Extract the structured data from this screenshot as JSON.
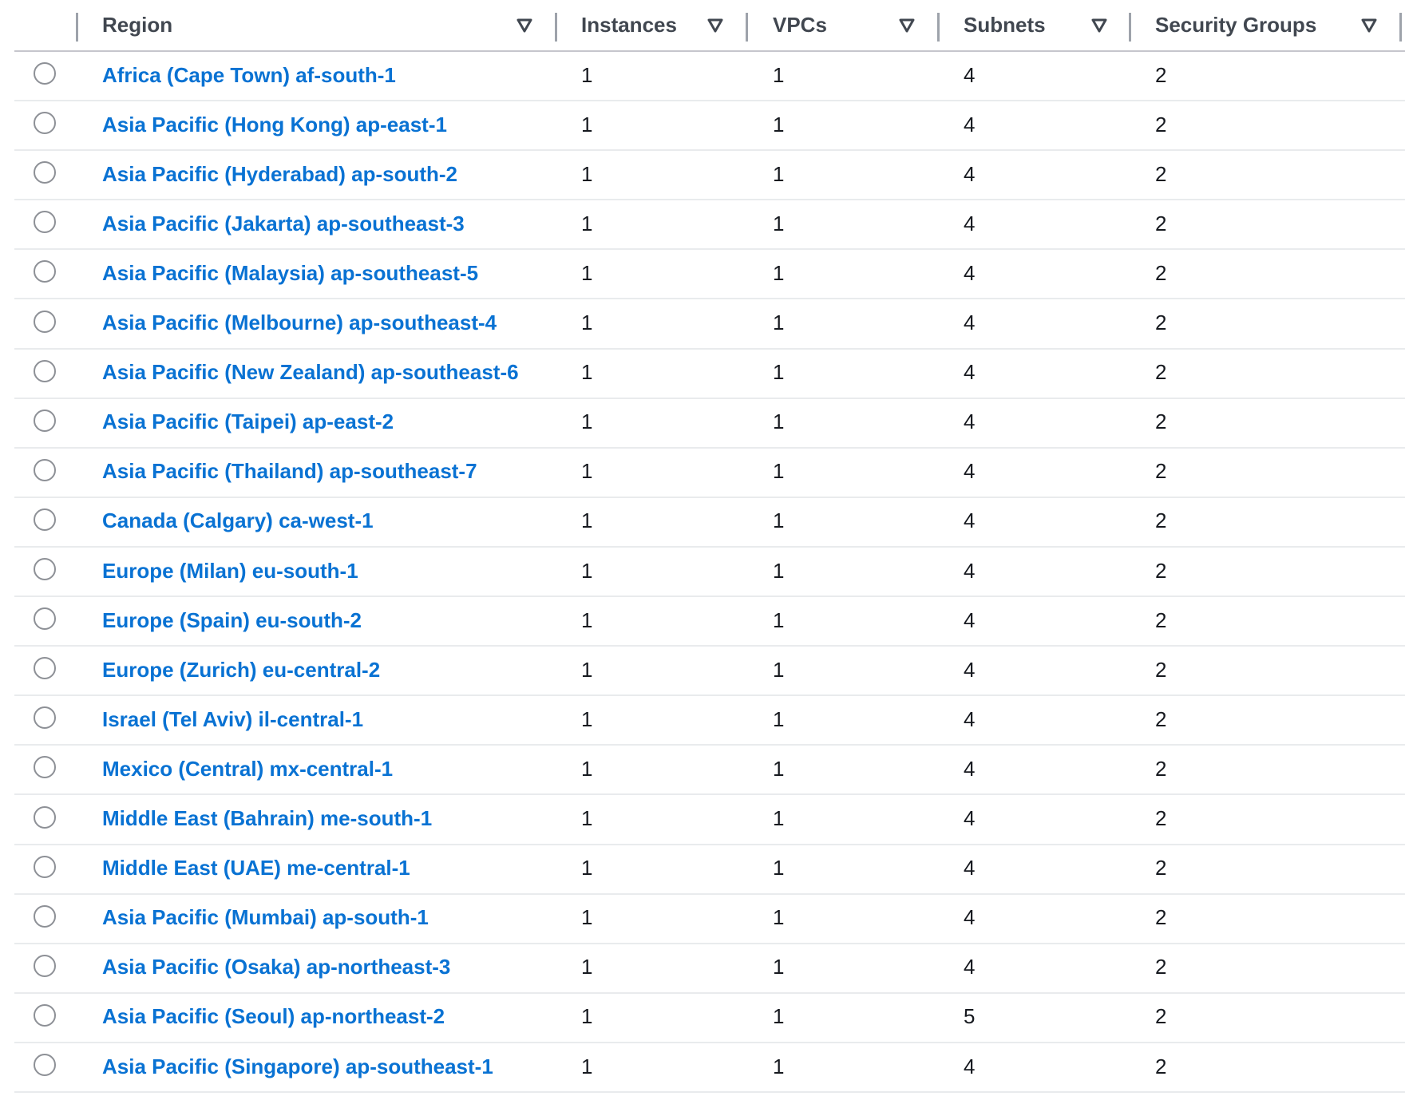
{
  "columns": [
    "Region",
    "Instances",
    "VPCs",
    "Subnets",
    "Security Groups"
  ],
  "icons": {
    "filter": "filter-triangle-icon",
    "select": "radio-button-icon"
  },
  "colors": {
    "link": "#0972d3",
    "header": "#414750"
  },
  "rows": [
    {
      "region": "Africa (Cape Town) af-south-1",
      "instances": "1",
      "vpcs": "1",
      "subnets": "4",
      "sgs": "2"
    },
    {
      "region": "Asia Pacific (Hong Kong) ap-east-1",
      "instances": "1",
      "vpcs": "1",
      "subnets": "4",
      "sgs": "2"
    },
    {
      "region": "Asia Pacific (Hyderabad) ap-south-2",
      "instances": "1",
      "vpcs": "1",
      "subnets": "4",
      "sgs": "2"
    },
    {
      "region": "Asia Pacific (Jakarta) ap-southeast-3",
      "instances": "1",
      "vpcs": "1",
      "subnets": "4",
      "sgs": "2"
    },
    {
      "region": "Asia Pacific (Malaysia) ap-southeast-5",
      "instances": "1",
      "vpcs": "1",
      "subnets": "4",
      "sgs": "2"
    },
    {
      "region": "Asia Pacific (Melbourne) ap-southeast-4",
      "instances": "1",
      "vpcs": "1",
      "subnets": "4",
      "sgs": "2"
    },
    {
      "region": "Asia Pacific (New Zealand) ap-southeast-6",
      "instances": "1",
      "vpcs": "1",
      "subnets": "4",
      "sgs": "2"
    },
    {
      "region": "Asia Pacific (Taipei) ap-east-2",
      "instances": "1",
      "vpcs": "1",
      "subnets": "4",
      "sgs": "2"
    },
    {
      "region": "Asia Pacific (Thailand) ap-southeast-7",
      "instances": "1",
      "vpcs": "1",
      "subnets": "4",
      "sgs": "2"
    },
    {
      "region": "Canada (Calgary) ca-west-1",
      "instances": "1",
      "vpcs": "1",
      "subnets": "4",
      "sgs": "2"
    },
    {
      "region": "Europe (Milan) eu-south-1",
      "instances": "1",
      "vpcs": "1",
      "subnets": "4",
      "sgs": "2"
    },
    {
      "region": "Europe (Spain) eu-south-2",
      "instances": "1",
      "vpcs": "1",
      "subnets": "4",
      "sgs": "2"
    },
    {
      "region": "Europe (Zurich) eu-central-2",
      "instances": "1",
      "vpcs": "1",
      "subnets": "4",
      "sgs": "2"
    },
    {
      "region": "Israel (Tel Aviv) il-central-1",
      "instances": "1",
      "vpcs": "1",
      "subnets": "4",
      "sgs": "2"
    },
    {
      "region": "Mexico (Central) mx-central-1",
      "instances": "1",
      "vpcs": "1",
      "subnets": "4",
      "sgs": "2"
    },
    {
      "region": "Middle East (Bahrain) me-south-1",
      "instances": "1",
      "vpcs": "1",
      "subnets": "4",
      "sgs": "2"
    },
    {
      "region": "Middle East (UAE) me-central-1",
      "instances": "1",
      "vpcs": "1",
      "subnets": "4",
      "sgs": "2"
    },
    {
      "region": "Asia Pacific (Mumbai) ap-south-1",
      "instances": "1",
      "vpcs": "1",
      "subnets": "4",
      "sgs": "2"
    },
    {
      "region": "Asia Pacific (Osaka) ap-northeast-3",
      "instances": "1",
      "vpcs": "1",
      "subnets": "4",
      "sgs": "2"
    },
    {
      "region": "Asia Pacific (Seoul) ap-northeast-2",
      "instances": "1",
      "vpcs": "1",
      "subnets": "5",
      "sgs": "2"
    },
    {
      "region": "Asia Pacific (Singapore) ap-southeast-1",
      "instances": "1",
      "vpcs": "1",
      "subnets": "4",
      "sgs": "2"
    }
  ]
}
